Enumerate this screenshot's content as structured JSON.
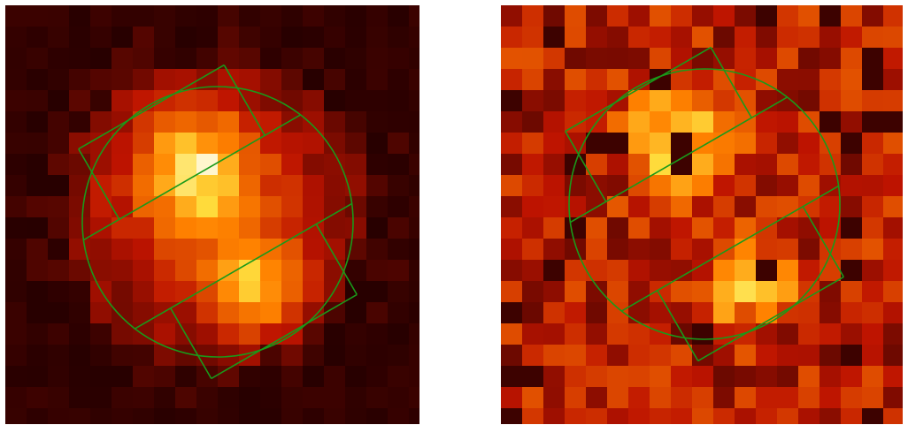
{
  "colors": {
    "background": "#000000",
    "overlay": "#1a9a1a",
    "page": "#ffffff"
  },
  "panels": [
    {
      "name": "left-image-panel",
      "colormap": "heat",
      "seed": 7,
      "profile": "blob"
    },
    {
      "name": "right-image-panel",
      "colormap": "heat",
      "seed": 13,
      "profile": "noisy-two-peaks"
    }
  ],
  "overlay": {
    "shape": "circle-with-rotated-rectangles",
    "description_text": ""
  }
}
